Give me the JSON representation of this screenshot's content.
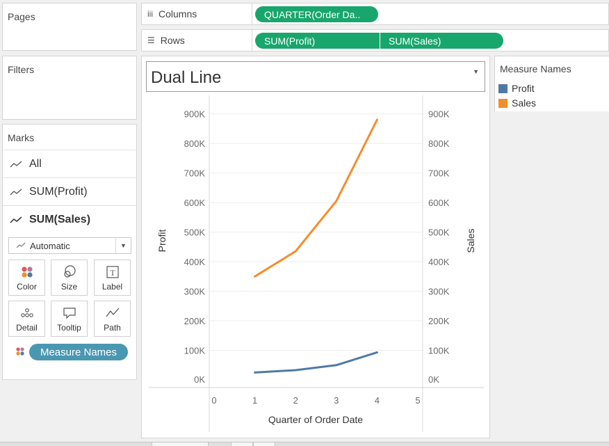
{
  "cards": {
    "pages_title": "Pages",
    "filters_title": "Filters",
    "marks_title": "Marks"
  },
  "marks": {
    "rows": [
      {
        "label": "All",
        "icon": "line-mark-icon"
      },
      {
        "label": "SUM(Profit)",
        "icon": "line-mark-icon"
      },
      {
        "label": "SUM(Sales)",
        "icon": "line-mark-icon"
      }
    ],
    "mark_type": "Automatic",
    "buttons": [
      {
        "label": "Color",
        "icon": "color-dots-icon"
      },
      {
        "label": "Size",
        "icon": "size-circles-icon"
      },
      {
        "label": "Label",
        "icon": "text-label-icon"
      },
      {
        "label": "Detail",
        "icon": "detail-dots-icon"
      },
      {
        "label": "Tooltip",
        "icon": "tooltip-bubble-icon"
      },
      {
        "label": "Path",
        "icon": "path-line-icon"
      }
    ],
    "color_pill": "Measure Names"
  },
  "shelves": {
    "columns_label": "Columns",
    "rows_label": "Rows",
    "columns_pills": [
      "QUARTER(Order Da.."
    ],
    "rows_pills": [
      "SUM(Profit)",
      "SUM(Sales)"
    ]
  },
  "view": {
    "title": "Dual Line"
  },
  "legend": {
    "title": "Measure Names",
    "items": [
      {
        "label": "Profit",
        "color": "#4e79a7"
      },
      {
        "label": "Sales",
        "color": "#f28e2b"
      }
    ]
  },
  "chart_data": {
    "type": "line",
    "title": "Dual Line",
    "xlabel": "Quarter of Order Date",
    "ylabel": "Profit",
    "y2label": "Sales",
    "x_ticks": [
      "0",
      "1",
      "2",
      "3",
      "4",
      "5"
    ],
    "xlim": [
      0,
      5
    ],
    "y_ticks": [
      "0K",
      "100K",
      "200K",
      "300K",
      "400K",
      "500K",
      "600K",
      "700K",
      "800K",
      "900K"
    ],
    "ylim": [
      0,
      925000
    ],
    "grid": true,
    "series": [
      {
        "name": "Profit",
        "color": "#4e79a7",
        "x": [
          1,
          2,
          3,
          4
        ],
        "values": [
          25000,
          33000,
          50000,
          93000
        ]
      },
      {
        "name": "Sales",
        "color": "#f28e2b",
        "x": [
          1,
          2,
          3,
          4
        ],
        "values": [
          350000,
          435000,
          605000,
          880000
        ]
      }
    ]
  }
}
